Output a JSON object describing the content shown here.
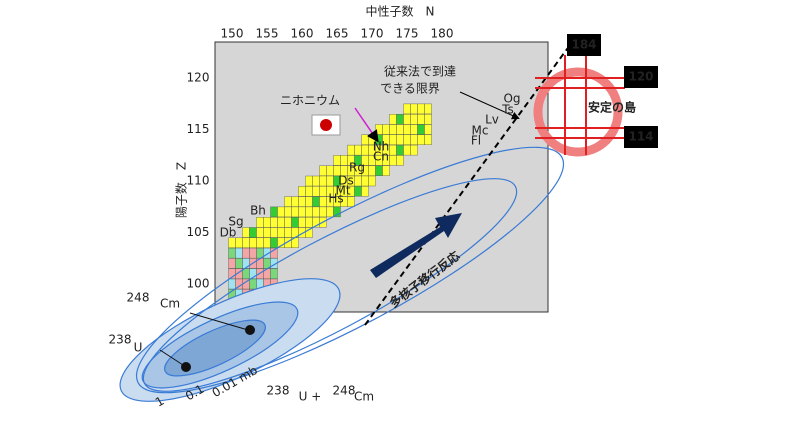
{
  "axes": {
    "x_title": "中性子数　N",
    "y_title": "陽子数　Z",
    "x_ticks": [
      "150",
      "155",
      "160",
      "165",
      "170",
      "175",
      "180"
    ],
    "y_ticks": [
      "100",
      "105",
      "110",
      "115",
      "120"
    ]
  },
  "magic_numbers": {
    "neutron": "184",
    "proton_upper": "120",
    "proton_lower": "114"
  },
  "limit_label": [
    "従来法で到達",
    "できる限界"
  ],
  "island_label": "安定の島",
  "nihonium_label": "ニホニウム",
  "reaction_label": "多核子移行反応",
  "elements": [
    "Og",
    "Ts",
    "Lv",
    "Mc",
    "Fl",
    "Nh",
    "Cn",
    "Rg",
    "Ds",
    "Mt",
    "Hs",
    "Bh",
    "Sg",
    "Db"
  ],
  "nuclei": {
    "cm_mass": "248",
    "cm_symbol": "Cm",
    "u_mass": "238",
    "u_symbol": "U"
  },
  "reaction": {
    "u_mass": "238",
    "u_symbol": "U + ",
    "cm_mass": "248",
    "cm_symbol": "Cm"
  },
  "contours": [
    "1",
    "0.1",
    "0.01 mb"
  ]
}
